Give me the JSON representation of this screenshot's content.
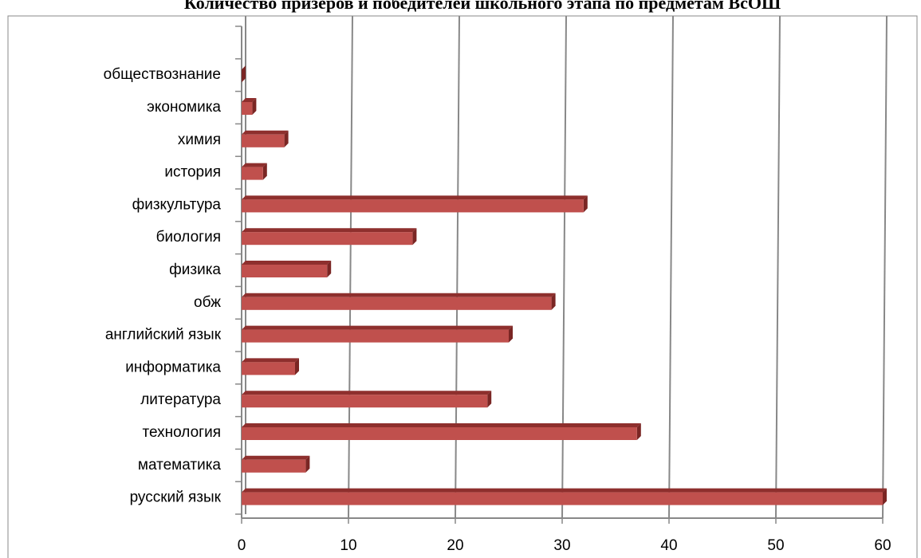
{
  "chart_data": {
    "type": "bar",
    "orientation": "horizontal",
    "title": "Количество призеров и победителей школьного этапа по предметам ВсОШ",
    "categories": [
      "русский язык",
      "математика",
      "технология",
      "литература",
      "информатика",
      "английский язык",
      "обж",
      "физика",
      "биология",
      "физкультура",
      "история",
      "химия",
      "экономика",
      "обществознание",
      null
    ],
    "values": [
      60,
      6,
      37,
      23,
      5,
      25,
      29,
      8,
      16,
      32,
      2,
      4,
      1,
      0,
      null
    ],
    "color": "#c0504d",
    "xlim": [
      0,
      60
    ],
    "xticks": [
      0,
      10,
      20,
      30,
      40,
      50,
      60
    ],
    "grid": true
  }
}
